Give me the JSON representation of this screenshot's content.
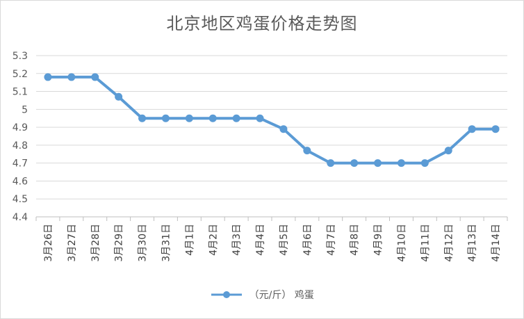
{
  "chart_data": {
    "type": "line",
    "title": "北京地区鸡蛋价格走势图",
    "xlabel": "",
    "ylabel": "",
    "categories": [
      "3月26日",
      "3月27日",
      "3月28日",
      "3月29日",
      "3月30日",
      "3月31日",
      "4月1日",
      "4月2日",
      "4月3日",
      "4月4日",
      "4月5日",
      "4月6日",
      "4月7日",
      "4月8日",
      "4月9日",
      "4月10日",
      "4月11日",
      "4月12日",
      "4月13日",
      "4月14日"
    ],
    "series": [
      {
        "name": "（元/斤） 鸡蛋",
        "values": [
          5.18,
          5.18,
          5.18,
          5.07,
          4.95,
          4.95,
          4.95,
          4.95,
          4.95,
          4.95,
          4.89,
          4.77,
          4.7,
          4.7,
          4.7,
          4.7,
          4.7,
          4.77,
          4.89,
          4.89
        ],
        "color": "#5b9bd5"
      }
    ],
    "ylim": [
      4.4,
      5.3
    ],
    "yticks": [
      "4.4",
      "4.5",
      "4.6",
      "4.7",
      "4.8",
      "4.9",
      "5",
      "5.1",
      "5.2",
      "5.3"
    ],
    "grid": true,
    "legend": "bottom"
  }
}
